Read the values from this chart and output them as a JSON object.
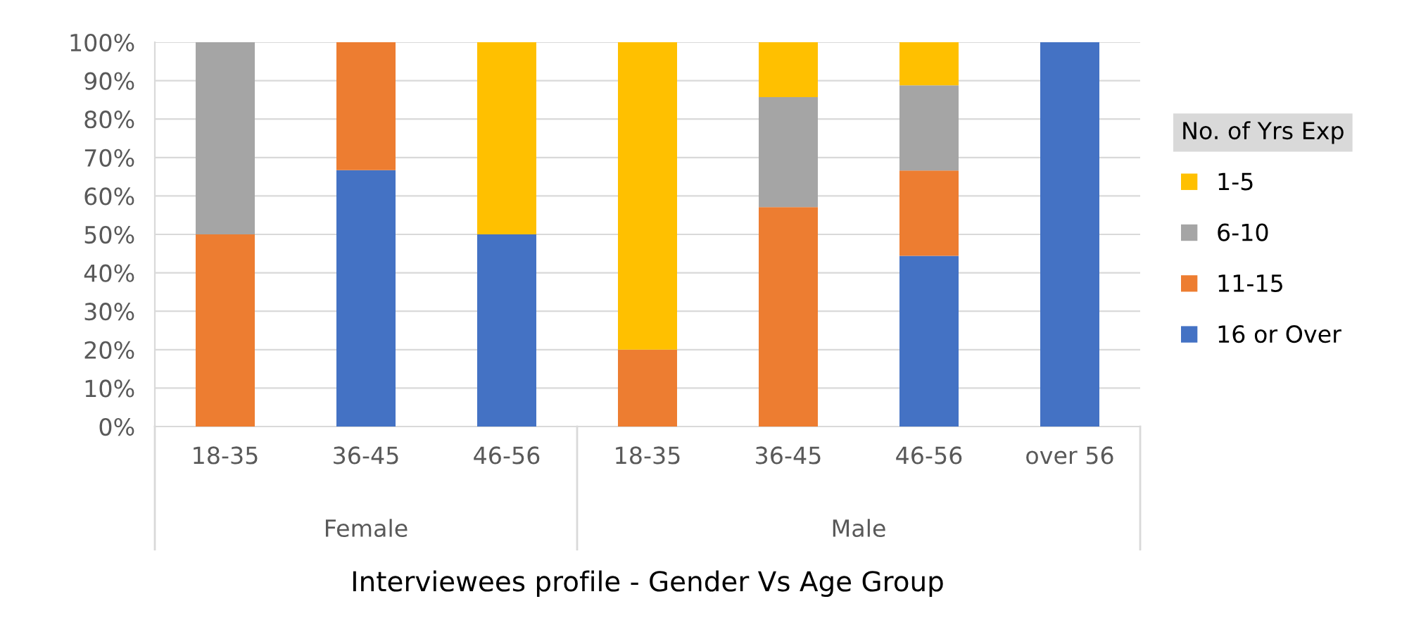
{
  "chart_data": {
    "type": "bar",
    "stacked": true,
    "xlabel": "Interviewees profile - Gender Vs Age Group",
    "categories": [
      "18-35",
      "36-45",
      "46-56",
      "18-35",
      "36-45",
      "46-56",
      "over 56"
    ],
    "annotations": [
      "Female",
      "Male"
    ],
    "legend_title": "No. of Yrs Exp",
    "series": [
      {
        "name": "16 or Over",
        "color": "#4472c4",
        "values": [
          0,
          66.7,
          50,
          0,
          0,
          44.4,
          100
        ]
      },
      {
        "name": "11-15",
        "color": "#ed7d31",
        "values": [
          50,
          33.3,
          0,
          20,
          57.1,
          22.2,
          0
        ]
      },
      {
        "name": "6-10",
        "color": "#a5a5a5",
        "values": [
          50,
          0,
          0,
          0,
          28.6,
          22.2,
          0
        ]
      },
      {
        "name": "1-5",
        "color": "#ffc000",
        "values": [
          0,
          0,
          50,
          80,
          14.3,
          11.2,
          0
        ]
      }
    ],
    "ylim": [
      0,
      100
    ],
    "yticks": [
      {
        "value": 0,
        "label": "0%"
      },
      {
        "value": 10,
        "label": "10%"
      },
      {
        "value": 20,
        "label": "20%"
      },
      {
        "value": 30,
        "label": "30%"
      },
      {
        "value": 40,
        "label": "40%"
      },
      {
        "value": 50,
        "label": "50%"
      },
      {
        "value": 60,
        "label": "60%"
      },
      {
        "value": 70,
        "label": "70%"
      },
      {
        "value": 80,
        "label": "80%"
      },
      {
        "value": 90,
        "label": "90%"
      },
      {
        "value": 100,
        "label": "100%"
      }
    ],
    "grid": "y",
    "legend": "right"
  }
}
